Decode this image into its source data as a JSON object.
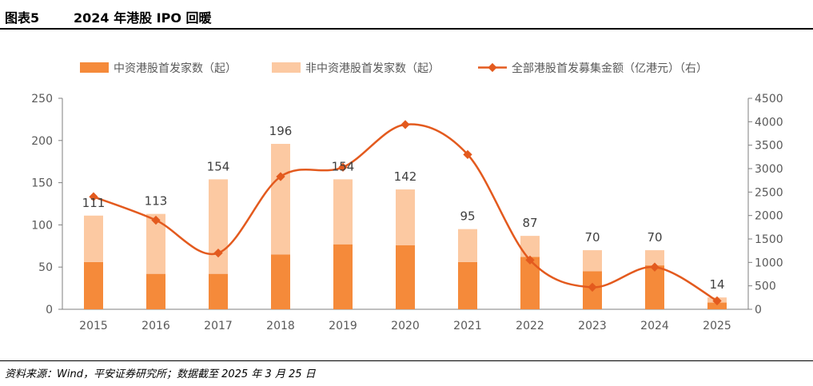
{
  "header": {
    "figure_no": "图表5",
    "title": "2024 年港股 IPO 回暖"
  },
  "source": "资料来源：Wind，平安证券研究所；数据截至 2025 年 3 月 25 日",
  "colors": {
    "chinese_ipo": "#F58A3A",
    "non_chinese_ipo": "#FCC9A2",
    "amount_line": "#E35A1E",
    "axis_text": "#595959"
  },
  "chart_data": {
    "type": "bar",
    "stacked": true,
    "categories": [
      "2015",
      "2016",
      "2017",
      "2018",
      "2019",
      "2020",
      "2021",
      "2022",
      "2023",
      "2024",
      "2025"
    ],
    "series": [
      {
        "name": "中资港股首发家数（起）",
        "values": [
          56,
          42,
          42,
          65,
          77,
          76,
          56,
          62,
          45,
          52,
          8
        ]
      },
      {
        "name": "非中资港股首发家数（起）",
        "values": [
          55,
          71,
          112,
          131,
          77,
          66,
          39,
          25,
          25,
          18,
          6
        ]
      }
    ],
    "totals": [
      111,
      113,
      154,
      196,
      154,
      142,
      95,
      87,
      70,
      70,
      14
    ],
    "line_series": {
      "name": "全部港股首发募集金额（亿港元）（右）",
      "values": [
        2400,
        1900,
        1200,
        2830,
        3030,
        3940,
        3300,
        1050,
        470,
        900,
        180
      ]
    },
    "y_left": {
      "min": 0,
      "max": 250,
      "ticks": [
        0,
        50,
        100,
        150,
        200,
        250
      ]
    },
    "y_right": {
      "min": 0,
      "max": 4500,
      "ticks": [
        0,
        500,
        1000,
        1500,
        2000,
        2500,
        3000,
        3500,
        4000,
        4500
      ]
    },
    "legend_position": "top"
  }
}
